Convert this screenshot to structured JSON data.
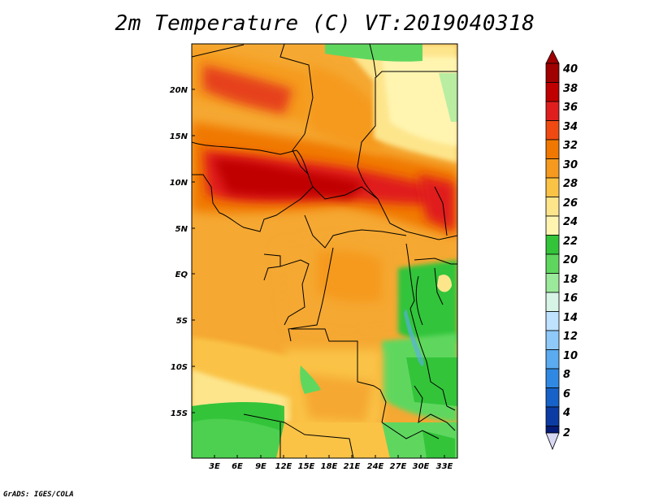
{
  "title": "2m Temperature (C) VT:2019040318",
  "credit": "GrADS: IGES/COLA",
  "map": {
    "lat_labels": [
      "20N",
      "15N",
      "10N",
      "5N",
      "EQ",
      "5S",
      "10S",
      "15S"
    ],
    "lon_labels": [
      "3E",
      "6E",
      "9E",
      "12E",
      "15E",
      "18E",
      "21E",
      "24E",
      "27E",
      "30E",
      "33E"
    ]
  },
  "colorbar": {
    "levels": [
      "40",
      "38",
      "36",
      "34",
      "32",
      "30",
      "28",
      "26",
      "24",
      "22",
      "20",
      "18",
      "16",
      "14",
      "12",
      "10",
      "8",
      "6",
      "4",
      "2"
    ],
    "colors": [
      "#a00000",
      "#c00000",
      "#e01e1e",
      "#f04a12",
      "#f07800",
      "#f59a1e",
      "#fac346",
      "#fde58c",
      "#fff5b0",
      "#33c43a",
      "#5fd75f",
      "#9bea9b",
      "#d6f5e6",
      "#bfe2ff",
      "#8ec9f9",
      "#5aabf0",
      "#2f89e2",
      "#1662c8",
      "#0c3ca3",
      "#061a78",
      "#d8d8f5"
    ]
  }
}
